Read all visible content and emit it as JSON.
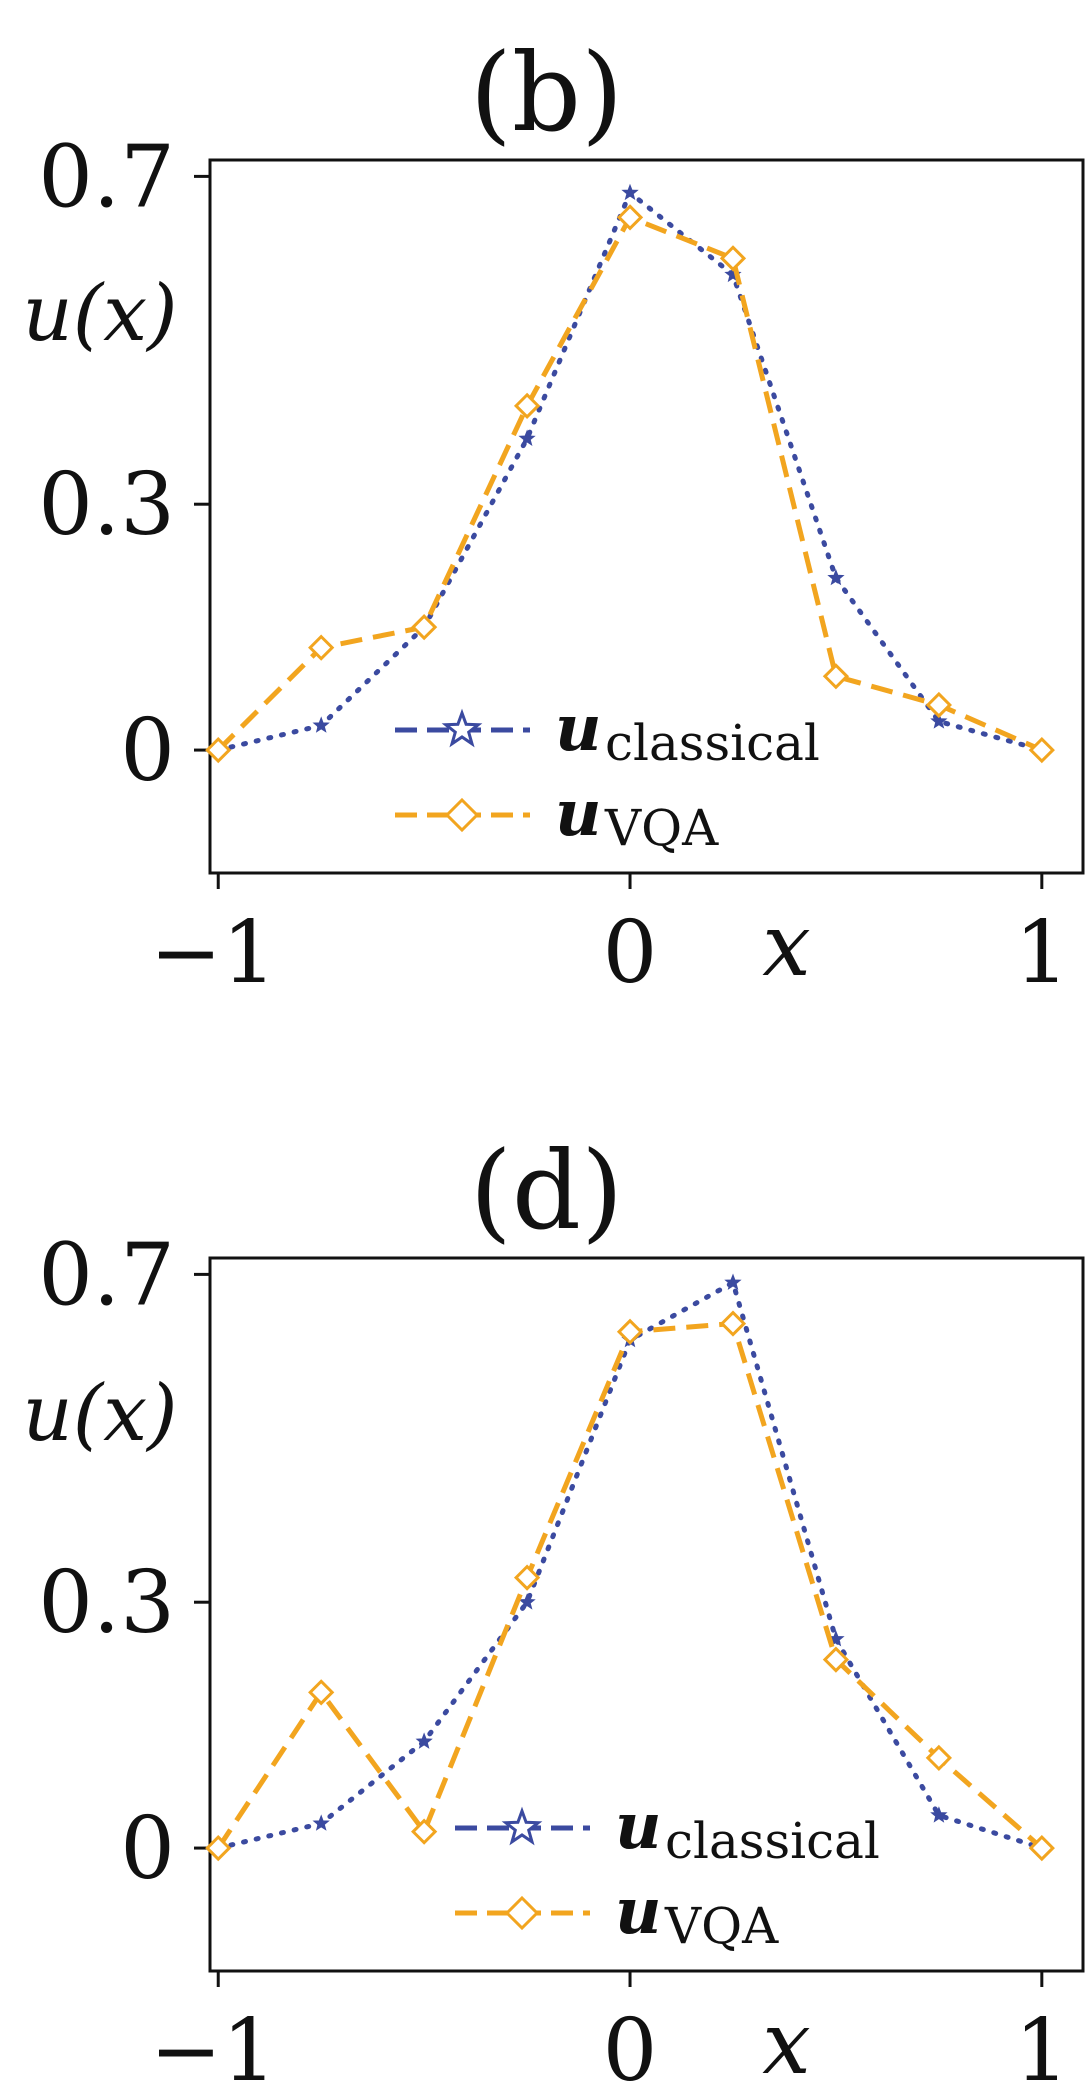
{
  "chart_data": [
    {
      "type": "line",
      "title": "(b)",
      "xlabel": "x",
      "ylabel": "u(x)",
      "xlim": [
        -1.02,
        1.1
      ],
      "ylim": [
        -0.15,
        0.72
      ],
      "xticks": [
        -1,
        0,
        1
      ],
      "xtick_labels": [
        "−1",
        "0",
        "1"
      ],
      "yticks": [
        0,
        0.3,
        0.7
      ],
      "ytick_labels": [
        "0",
        "0.3",
        "0.7"
      ],
      "x": [
        -1,
        -0.75,
        -0.5,
        -0.25,
        0,
        0.25,
        0.5,
        0.75,
        1
      ],
      "series": [
        {
          "name": "u_classical",
          "label_main": "u",
          "label_sub": "classical",
          "color": "#3b4aa0",
          "marker": "star",
          "linestyle": "dotted",
          "values": [
            0.0,
            0.03,
            0.15,
            0.38,
            0.68,
            0.58,
            0.21,
            0.035,
            0.0
          ]
        },
        {
          "name": "u_VQA",
          "label_main": "u",
          "label_sub": "VQA",
          "color": "#f2a51f",
          "marker": "diamond",
          "linestyle": "dashed",
          "values": [
            0.0,
            0.125,
            0.15,
            0.42,
            0.65,
            0.6,
            0.09,
            0.055,
            0.0
          ]
        }
      ],
      "legend_position": "lower-center"
    },
    {
      "type": "line",
      "title": "(d)",
      "xlabel": "x",
      "ylabel": "u(x)",
      "xlim": [
        -1.02,
        1.1
      ],
      "ylim": [
        -0.15,
        0.72
      ],
      "xticks": [
        -1,
        0,
        1
      ],
      "xtick_labels": [
        "−1",
        "0",
        "1"
      ],
      "yticks": [
        0,
        0.3,
        0.7
      ],
      "ytick_labels": [
        "0",
        "0.3",
        "0.7"
      ],
      "x": [
        -1,
        -0.75,
        -0.5,
        -0.25,
        0,
        0.25,
        0.5,
        0.75,
        1
      ],
      "series": [
        {
          "name": "u_classical",
          "label_main": "u",
          "label_sub": "classical",
          "color": "#3b4aa0",
          "marker": "star",
          "linestyle": "dotted",
          "values": [
            0.0,
            0.03,
            0.13,
            0.3,
            0.62,
            0.69,
            0.255,
            0.04,
            0.0
          ]
        },
        {
          "name": "u_VQA",
          "label_main": "u",
          "label_sub": "VQA",
          "color": "#f2a51f",
          "marker": "diamond",
          "linestyle": "dashed",
          "values": [
            0.0,
            0.19,
            0.02,
            0.33,
            0.63,
            0.64,
            0.23,
            0.11,
            0.0
          ]
        }
      ],
      "legend_position": "lower-center"
    }
  ]
}
